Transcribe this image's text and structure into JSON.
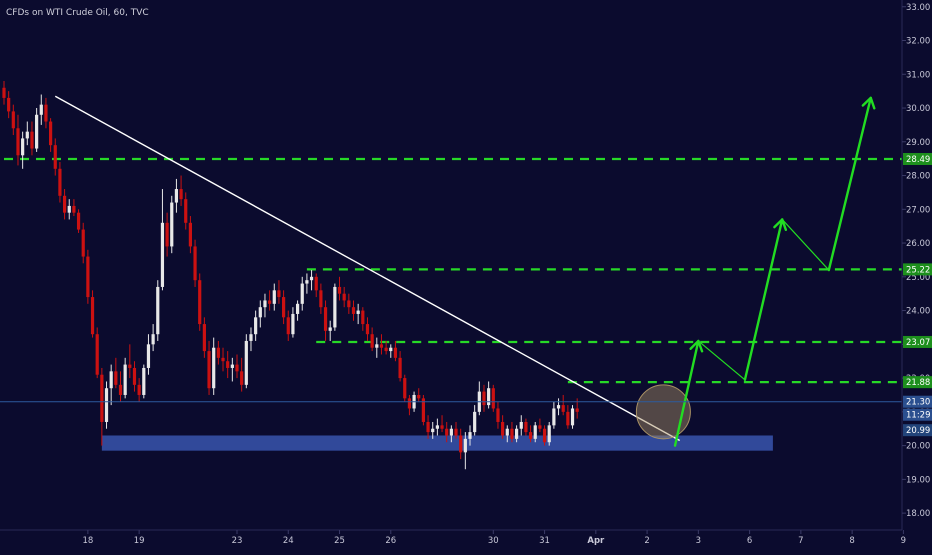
{
  "header": {
    "title": "CFDs on WTI Crude Oil, 60, TVC"
  },
  "colors": {
    "background": "#0b0b2e",
    "up_candle": "#e8e8e8",
    "down_candle": "#cc1111",
    "level_line": "#27d927",
    "trend_line": "#ffffff",
    "support_zone": "#3550a6",
    "projection": "#22dd22",
    "price_line": "#2d5b9e",
    "axis_text": "#c8c8d8",
    "highlight_circle": "#a89064"
  },
  "chart_data": {
    "type": "candlestick",
    "symbol": "CFDs on WTI Crude Oil",
    "interval": "60",
    "source": "TVC",
    "x_ticks": [
      {
        "label": "18",
        "slot": 18
      },
      {
        "label": "19",
        "slot": 29
      },
      {
        "label": "23",
        "slot": 50
      },
      {
        "label": "24",
        "slot": 61
      },
      {
        "label": "25",
        "slot": 72
      },
      {
        "label": "26",
        "slot": 83
      },
      {
        "label": "30",
        "slot": 105
      },
      {
        "label": "31",
        "slot": 116
      },
      {
        "label": "Apr",
        "slot": 127
      },
      {
        "label": "2",
        "slot": 138
      },
      {
        "label": "3",
        "slot": 149
      },
      {
        "label": "6",
        "slot": 160
      },
      {
        "label": "7",
        "slot": 171
      },
      {
        "label": "8",
        "slot": 182
      },
      {
        "label": "9",
        "slot": 193
      }
    ],
    "y_ticks": [
      "18.00",
      "19.00",
      "20.00",
      "21.00",
      "22.00",
      "23.00",
      "24.00",
      "25.00",
      "26.00",
      "27.00",
      "28.00",
      "29.00",
      "30.00",
      "31.00",
      "32.00",
      "33.00"
    ],
    "ylim": [
      17.5,
      33.2
    ],
    "candles": [
      [
        30.6,
        30.8,
        30.1,
        30.3
      ],
      [
        30.3,
        30.5,
        29.7,
        29.9
      ],
      [
        29.9,
        30.1,
        29.2,
        29.4
      ],
      [
        29.4,
        29.8,
        28.3,
        28.6
      ],
      [
        28.6,
        29.3,
        28.2,
        29.1
      ],
      [
        29.1,
        29.6,
        28.9,
        29.3
      ],
      [
        29.3,
        29.6,
        28.6,
        28.8
      ],
      [
        28.8,
        30.0,
        28.7,
        29.8
      ],
      [
        29.8,
        30.4,
        29.5,
        30.1
      ],
      [
        30.1,
        30.3,
        29.4,
        29.6
      ],
      [
        29.6,
        29.7,
        28.7,
        28.9
      ],
      [
        28.9,
        29.1,
        28.0,
        28.2
      ],
      [
        28.2,
        28.4,
        27.2,
        27.4
      ],
      [
        27.4,
        27.6,
        26.7,
        26.9
      ],
      [
        26.9,
        27.3,
        26.7,
        27.1
      ],
      [
        27.1,
        27.3,
        26.8,
        26.9
      ],
      [
        26.9,
        27.0,
        26.3,
        26.4
      ],
      [
        26.4,
        26.6,
        25.4,
        25.6
      ],
      [
        25.6,
        25.8,
        24.2,
        24.4
      ],
      [
        24.4,
        24.6,
        23.2,
        23.3
      ],
      [
        23.3,
        23.5,
        22.0,
        22.1
      ],
      [
        22.1,
        22.3,
        20.0,
        20.7
      ],
      [
        20.7,
        21.9,
        20.5,
        21.7
      ],
      [
        21.7,
        22.4,
        21.2,
        22.2
      ],
      [
        22.2,
        22.6,
        21.7,
        21.8
      ],
      [
        21.8,
        22.2,
        21.3,
        21.5
      ],
      [
        21.5,
        22.6,
        21.4,
        22.4
      ],
      [
        22.4,
        23.0,
        22.0,
        22.3
      ],
      [
        22.3,
        22.5,
        21.6,
        21.8
      ],
      [
        21.8,
        22.0,
        21.3,
        21.5
      ],
      [
        21.5,
        22.4,
        21.4,
        22.3
      ],
      [
        22.3,
        23.3,
        22.1,
        23.0
      ],
      [
        23.0,
        23.6,
        22.8,
        23.3
      ],
      [
        23.3,
        24.9,
        23.1,
        24.7
      ],
      [
        24.7,
        27.6,
        24.6,
        26.6
      ],
      [
        26.6,
        26.9,
        25.6,
        25.9
      ],
      [
        25.9,
        27.4,
        25.7,
        27.2
      ],
      [
        27.2,
        27.9,
        26.9,
        27.6
      ],
      [
        27.6,
        28.0,
        27.1,
        27.3
      ],
      [
        27.3,
        27.5,
        26.4,
        26.6
      ],
      [
        26.6,
        26.8,
        25.7,
        25.9
      ],
      [
        25.9,
        26.1,
        24.7,
        24.9
      ],
      [
        24.9,
        25.1,
        23.4,
        23.6
      ],
      [
        23.6,
        23.8,
        22.6,
        22.8
      ],
      [
        22.8,
        23.1,
        21.5,
        21.7
      ],
      [
        21.7,
        23.2,
        21.5,
        22.9
      ],
      [
        22.9,
        23.1,
        22.4,
        22.6
      ],
      [
        22.6,
        22.9,
        22.2,
        22.5
      ],
      [
        22.5,
        22.8,
        22.0,
        22.3
      ],
      [
        22.3,
        22.6,
        21.9,
        22.4
      ],
      [
        22.4,
        22.7,
        22.0,
        22.2
      ],
      [
        22.2,
        22.6,
        21.6,
        21.8
      ],
      [
        21.8,
        23.3,
        21.7,
        23.1
      ],
      [
        23.1,
        23.5,
        22.8,
        23.3
      ],
      [
        23.3,
        24.0,
        23.1,
        23.8
      ],
      [
        23.8,
        24.3,
        23.5,
        24.1
      ],
      [
        24.1,
        24.5,
        23.8,
        24.3
      ],
      [
        24.3,
        24.6,
        24.0,
        24.2
      ],
      [
        24.2,
        24.8,
        24.0,
        24.6
      ],
      [
        24.6,
        24.9,
        24.2,
        24.4
      ],
      [
        24.4,
        24.6,
        23.6,
        23.8
      ],
      [
        23.8,
        24.0,
        23.1,
        23.3
      ],
      [
        23.3,
        24.1,
        23.2,
        23.9
      ],
      [
        23.9,
        24.3,
        23.7,
        24.2
      ],
      [
        24.2,
        25.0,
        24.0,
        24.8
      ],
      [
        24.8,
        25.1,
        24.5,
        24.9
      ],
      [
        24.9,
        25.2,
        24.6,
        25.0
      ],
      [
        25.0,
        25.1,
        24.4,
        24.6
      ],
      [
        24.6,
        24.8,
        23.9,
        24.1
      ],
      [
        24.1,
        24.3,
        23.1,
        23.4
      ],
      [
        23.4,
        23.7,
        23.1,
        23.5
      ],
      [
        23.5,
        24.8,
        23.4,
        24.7
      ],
      [
        24.7,
        25.0,
        24.3,
        24.5
      ],
      [
        24.5,
        24.7,
        24.1,
        24.3
      ],
      [
        24.3,
        24.5,
        23.9,
        24.1
      ],
      [
        24.1,
        24.3,
        23.7,
        23.9
      ],
      [
        23.9,
        24.2,
        23.6,
        24.0
      ],
      [
        24.0,
        24.1,
        23.4,
        23.6
      ],
      [
        23.6,
        23.8,
        23.1,
        23.3
      ],
      [
        23.3,
        23.5,
        22.8,
        22.9
      ],
      [
        22.9,
        23.2,
        22.6,
        23.0
      ],
      [
        23.0,
        23.3,
        22.7,
        22.9
      ],
      [
        22.9,
        23.1,
        22.7,
        22.8
      ],
      [
        22.8,
        23.0,
        22.6,
        22.9
      ],
      [
        22.9,
        23.1,
        22.5,
        22.6
      ],
      [
        22.6,
        22.8,
        21.9,
        22.0
      ],
      [
        22.0,
        22.1,
        21.3,
        21.4
      ],
      [
        21.4,
        21.5,
        20.9,
        21.1
      ],
      [
        21.1,
        21.6,
        21.0,
        21.5
      ],
      [
        21.5,
        21.7,
        21.3,
        21.4
      ],
      [
        21.4,
        21.5,
        20.6,
        20.7
      ],
      [
        20.7,
        20.9,
        20.2,
        20.4
      ],
      [
        20.4,
        20.7,
        20.2,
        20.5
      ],
      [
        20.5,
        20.8,
        20.3,
        20.6
      ],
      [
        20.6,
        20.9,
        20.4,
        20.5
      ],
      [
        20.5,
        20.7,
        20.1,
        20.3
      ],
      [
        20.3,
        20.6,
        20.1,
        20.5
      ],
      [
        20.5,
        20.7,
        20.2,
        20.3
      ],
      [
        20.3,
        20.5,
        19.6,
        19.8
      ],
      [
        19.8,
        20.4,
        19.3,
        20.2
      ],
      [
        20.2,
        20.6,
        20.0,
        20.4
      ],
      [
        20.4,
        21.2,
        20.3,
        21.0
      ],
      [
        21.0,
        21.9,
        20.9,
        21.6
      ],
      [
        21.6,
        21.8,
        21.0,
        21.2
      ],
      [
        21.2,
        21.9,
        21.1,
        21.7
      ],
      [
        21.7,
        21.8,
        21.0,
        21.1
      ],
      [
        21.1,
        21.3,
        20.5,
        20.7
      ],
      [
        20.7,
        20.9,
        20.2,
        20.3
      ],
      [
        20.3,
        20.6,
        20.1,
        20.5
      ],
      [
        20.5,
        20.7,
        20.1,
        20.2
      ],
      [
        20.2,
        20.6,
        20.1,
        20.5
      ],
      [
        20.5,
        20.9,
        20.3,
        20.7
      ],
      [
        20.7,
        20.8,
        20.3,
        20.4
      ],
      [
        20.4,
        20.6,
        20.1,
        20.2
      ],
      [
        20.2,
        20.7,
        20.1,
        20.6
      ],
      [
        20.6,
        20.8,
        20.4,
        20.5
      ],
      [
        20.5,
        20.6,
        20.0,
        20.1
      ],
      [
        20.1,
        20.7,
        20.0,
        20.6
      ],
      [
        20.6,
        21.3,
        20.5,
        21.1
      ],
      [
        21.1,
        21.4,
        20.9,
        21.2
      ],
      [
        21.2,
        21.5,
        20.9,
        21.0
      ],
      [
        21.0,
        21.2,
        20.5,
        20.6
      ],
      [
        20.6,
        21.2,
        20.5,
        21.1
      ],
      [
        21.1,
        21.4,
        20.8,
        21.0
      ]
    ],
    "horizontal_levels": [
      {
        "value": 28.49,
        "label": "28.49",
        "start_slot": 0
      },
      {
        "value": 25.22,
        "label": "25.22",
        "start_slot": 65
      },
      {
        "value": 23.07,
        "label": "23.07",
        "start_slot": 67
      },
      {
        "value": 21.88,
        "label": "21.88",
        "start_slot": 121
      }
    ],
    "trendline": {
      "start": {
        "slot": 11,
        "price": 30.35
      },
      "end": {
        "slot": 145,
        "price": 20.15
      }
    },
    "support_zone": {
      "start_slot": 21,
      "end_slot": 165,
      "top": 20.3,
      "bottom": 19.85
    },
    "projection_path": [
      {
        "slot": 144,
        "price": 20.0
      },
      {
        "slot": 149,
        "price": 23.1
      },
      {
        "slot": 159,
        "price": 21.95
      },
      {
        "slot": 167,
        "price": 26.7
      },
      {
        "slot": 177,
        "price": 25.2
      },
      {
        "slot": 186,
        "price": 30.3
      }
    ],
    "highlight": {
      "slot": 141.5,
      "price": 21.0,
      "radius_price": 0.8
    },
    "current_price": {
      "value": 21.3,
      "label": "21.30",
      "countdown": "11:29"
    },
    "price_badges": [
      {
        "label": "21.30",
        "value": 21.3
      },
      {
        "label": "20.99",
        "value": 20.99
      }
    ]
  }
}
